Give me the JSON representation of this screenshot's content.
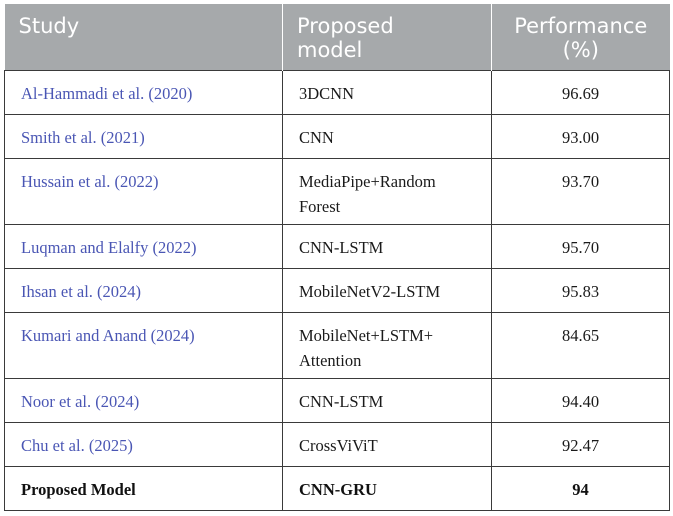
{
  "table": {
    "headers": {
      "study": "Study",
      "model_line1": "Proposed",
      "model_line2": "model",
      "perf_line1": "Performance",
      "perf_line2": "(%)"
    },
    "rows": [
      {
        "study": "Al-Hammadi et al. (2020)",
        "model": "3DCNN",
        "model2": "",
        "performance": "96.69"
      },
      {
        "study": "Smith et al. (2021)",
        "model": "CNN",
        "model2": "",
        "performance": "93.00"
      },
      {
        "study": "Hussain et al. (2022)",
        "model": "MediaPipe+Random",
        "model2": "Forest",
        "performance": "93.70"
      },
      {
        "study": "Luqman and Elalfy (2022)",
        "model": "CNN-LSTM",
        "model2": "",
        "performance": "95.70"
      },
      {
        "study": "Ihsan et al. (2024)",
        "model": "MobileNetV2-LSTM",
        "model2": "",
        "performance": "95.83"
      },
      {
        "study": "Kumari and Anand (2024)",
        "model": "MobileNet+LSTM+",
        "model2": "Attention",
        "performance": "84.65"
      },
      {
        "study": "Noor et al. (2024)",
        "model": "CNN-LSTM",
        "model2": "",
        "performance": "94.40"
      },
      {
        "study": "Chu et al. (2025)",
        "model": "CrossViViT",
        "model2": "",
        "performance": "92.47"
      },
      {
        "study": "Proposed Model",
        "model": "CNN-GRU",
        "model2": "",
        "performance": "94"
      }
    ]
  },
  "colors": {
    "header_bg": "#a6a9ab",
    "link": "#4a56b4"
  }
}
